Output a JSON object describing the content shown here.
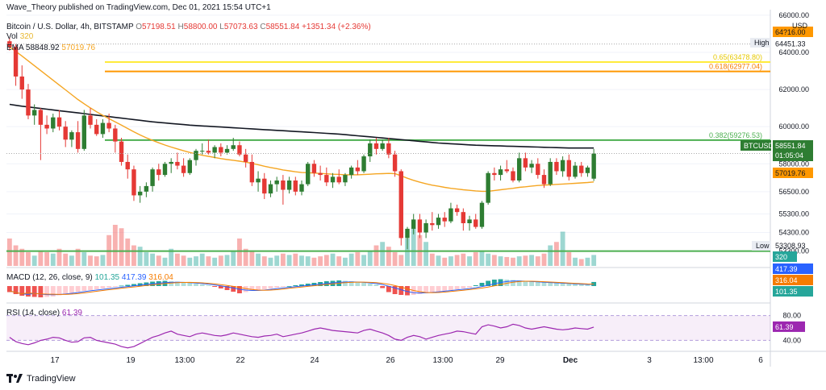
{
  "publisher": "Wave_Theory published on TradingView.com, Dec 01, 2021 15:54 UTC+1",
  "symbol": "Bitcoin / U.S. Dollar, 4h, BITSTAMP",
  "ohlc": {
    "o_label": "O",
    "o": "57198.51",
    "h_label": "H",
    "h": "58800.00",
    "l_label": "L",
    "l": "57073.63",
    "c_label": "C",
    "c": "58551.84",
    "change": "+1351.34 (+2.36%)"
  },
  "ema": {
    "label": "EMA",
    "value1": "58848.92",
    "value2": "57019.76"
  },
  "vol": {
    "label": "Vol",
    "value": "320"
  },
  "macd": {
    "label": "MACD (12, 26, close, 9)",
    "v1": "101.35",
    "v2": "417.39",
    "v3": "316.04"
  },
  "rsi": {
    "label": "RSI (14, close)",
    "value": "61.39"
  },
  "currency": "USD",
  "brand": "TradingView",
  "colors": {
    "up": "#26a69a",
    "down": "#ef5350",
    "green_up": "#2e7d32",
    "red_down": "#e53935",
    "ema_black": "#131722",
    "ema_orange": "#f5a623",
    "fib_green": "#4caf50",
    "fib_orange": "#ff9800",
    "fib_yellow": "#ffeb3b",
    "rsi": "#9c27b0"
  },
  "chart_data": [
    {
      "type": "candlestick",
      "title": "Bitcoin / U.S. Dollar, 4h, BITSTAMP",
      "x_ticks": [
        "17",
        "19",
        "13:00",
        "22",
        "24",
        "26",
        "13:00",
        "29",
        "Dec",
        "3",
        "13:00",
        "6"
      ],
      "y_ticks": [
        "66000.00",
        "64000.00",
        "62000.00",
        "60000.00",
        "58000.00",
        "56500.00",
        "55300.00",
        "54300.00",
        "53300.00"
      ],
      "ylim": [
        52500,
        66300
      ],
      "fib_levels": [
        {
          "label": "0.65(63478.80)",
          "value": 63478.8,
          "color": "yellow"
        },
        {
          "label": "0.618(62977.04)",
          "value": 62977.04,
          "color": "orange"
        },
        {
          "label": "0.382(59276.53)",
          "value": 59276.53,
          "color": "green"
        }
      ],
      "support_level": 53300,
      "price_labels": [
        {
          "name": "High",
          "text": "64451.33",
          "value": 64451.33
        },
        {
          "name": "EMA 320",
          "text": "58848.92",
          "value": 58848.92
        },
        {
          "name": "BTCUSD",
          "text": "58551.84",
          "value": 58551.84,
          "extra": "01:05:04"
        },
        {
          "name": "EMA 50",
          "text": "57019.76",
          "value": 57019.76
        },
        {
          "name": "Low",
          "text": "53308.93",
          "value": 53308.93
        },
        {
          "name": "Vol",
          "text": "320"
        }
      ],
      "top_partial_label": "64?16.00",
      "candles": [
        [
          64600,
          64800,
          64100,
          64300
        ],
        [
          64300,
          64450,
          62200,
          62700
        ],
        [
          62700,
          63300,
          61500,
          62000
        ],
        [
          62000,
          62300,
          60400,
          60600
        ],
        [
          60600,
          61200,
          60100,
          60900
        ],
        [
          60900,
          61000,
          58200,
          60100
        ],
        [
          60100,
          60600,
          59600,
          59900
        ],
        [
          59900,
          60700,
          59700,
          60500
        ],
        [
          60500,
          60900,
          59800,
          60000
        ],
        [
          60000,
          60300,
          58900,
          59300
        ],
        [
          59300,
          59800,
          58900,
          59700
        ],
        [
          59700,
          60300,
          58600,
          58800
        ],
        [
          58800,
          60900,
          58700,
          60600
        ],
        [
          60600,
          61000,
          59900,
          60100
        ],
        [
          60100,
          60400,
          59500,
          59600
        ],
        [
          59600,
          60400,
          59400,
          60200
        ],
        [
          60200,
          60700,
          59700,
          59900
        ],
        [
          59900,
          60100,
          58600,
          59200
        ],
        [
          59200,
          59400,
          57900,
          58100
        ],
        [
          58100,
          58500,
          57200,
          57700
        ],
        [
          57700,
          57900,
          56000,
          56300
        ],
        [
          56300,
          56800,
          55900,
          56500
        ],
        [
          56500,
          57000,
          56200,
          56800
        ],
        [
          56800,
          57800,
          56500,
          57700
        ],
        [
          57700,
          58000,
          57100,
          57400
        ],
        [
          57400,
          58100,
          57300,
          58000
        ],
        [
          58000,
          58300,
          57500,
          58100
        ],
        [
          58100,
          58600,
          57700,
          57900
        ],
        [
          57900,
          58300,
          57300,
          57500
        ],
        [
          57500,
          58300,
          57400,
          58200
        ],
        [
          58200,
          58800,
          57900,
          58700
        ],
        [
          58700,
          59100,
          58500,
          58700
        ],
        [
          58700,
          59300,
          58500,
          58600
        ],
        [
          58600,
          59000,
          58300,
          58900
        ],
        [
          58900,
          59100,
          58400,
          58600
        ],
        [
          58600,
          59000,
          58500,
          58800
        ],
        [
          58800,
          59400,
          58700,
          59000
        ],
        [
          59000,
          59200,
          58400,
          58500
        ],
        [
          58500,
          58800,
          57800,
          58100
        ],
        [
          58100,
          58500,
          56800,
          57000
        ],
        [
          57000,
          57600,
          56500,
          57200
        ],
        [
          57200,
          57500,
          56100,
          56400
        ],
        [
          56400,
          57100,
          56200,
          56900
        ],
        [
          56900,
          57300,
          56500,
          57100
        ],
        [
          57100,
          57400,
          55800,
          56600
        ],
        [
          56600,
          57300,
          56400,
          57100
        ],
        [
          57100,
          57300,
          56300,
          56500
        ],
        [
          56500,
          57100,
          56300,
          56900
        ],
        [
          56900,
          58100,
          56800,
          58000
        ],
        [
          58000,
          58200,
          57300,
          57500
        ],
        [
          57500,
          57900,
          57100,
          57400
        ],
        [
          57400,
          57800,
          56800,
          57000
        ],
        [
          57000,
          57500,
          56700,
          57300
        ],
        [
          57300,
          57700,
          56900,
          57000
        ],
        [
          57000,
          57500,
          56800,
          57400
        ],
        [
          57400,
          57900,
          57200,
          57800
        ],
        [
          57800,
          58200,
          57400,
          57600
        ],
        [
          57600,
          58500,
          57500,
          58400
        ],
        [
          58400,
          59300,
          58100,
          59100
        ],
        [
          59100,
          59400,
          58500,
          58800
        ],
        [
          58800,
          59300,
          58700,
          59100
        ],
        [
          59100,
          59400,
          58300,
          58500
        ],
        [
          58500,
          58700,
          57300,
          57600
        ],
        [
          57600,
          57700,
          53600,
          54000
        ],
        [
          54000,
          54600,
          53400,
          54500
        ],
        [
          54500,
          55300,
          54200,
          55000
        ],
        [
          55000,
          55300,
          54000,
          54300
        ],
        [
          54300,
          55000,
          54000,
          54800
        ],
        [
          54800,
          55400,
          54400,
          54700
        ],
        [
          54700,
          55300,
          54500,
          55100
        ],
        [
          55100,
          55400,
          54600,
          54900
        ],
        [
          54900,
          55900,
          54800,
          55600
        ],
        [
          55600,
          55800,
          55200,
          55400
        ],
        [
          55400,
          55600,
          54400,
          54800
        ],
        [
          54800,
          55200,
          54400,
          55000
        ],
        [
          55000,
          55300,
          54500,
          54600
        ],
        [
          54600,
          56000,
          54500,
          55900
        ],
        [
          55900,
          57600,
          55800,
          57500
        ],
        [
          57500,
          57800,
          57100,
          57400
        ],
        [
          57400,
          57900,
          57100,
          57700
        ],
        [
          57700,
          58200,
          57500,
          57600
        ],
        [
          57600,
          57800,
          57000,
          57100
        ],
        [
          57100,
          58600,
          57000,
          58300
        ],
        [
          58300,
          58600,
          57600,
          57800
        ],
        [
          57800,
          58200,
          57500,
          58000
        ],
        [
          58000,
          58300,
          57200,
          57400
        ],
        [
          57400,
          57700,
          56700,
          56900
        ],
        [
          56900,
          58300,
          56800,
          58100
        ],
        [
          58100,
          58300,
          57400,
          57600
        ],
        [
          57600,
          58400,
          57300,
          58200
        ],
        [
          58200,
          58500,
          57100,
          57300
        ],
        [
          57300,
          58100,
          57200,
          57900
        ],
        [
          57900,
          58100,
          57300,
          57500
        ],
        [
          57500,
          57900,
          57300,
          57800
        ],
        [
          57198.51,
          58800,
          57073.63,
          58551.84
        ]
      ],
      "ema_320": [
        61200,
        61150,
        61100,
        61060,
        61020,
        60980,
        60940,
        60900,
        60860,
        60820,
        60780,
        60740,
        60700,
        60660,
        60620,
        60580,
        60540,
        60500,
        60460,
        60420,
        60380,
        60340,
        60300,
        60260,
        60230,
        60200,
        60170,
        60140,
        60110,
        60080,
        60060,
        60040,
        60020,
        60000,
        59980,
        59960,
        59940,
        59920,
        59900,
        59880,
        59860,
        59840,
        59820,
        59800,
        59780,
        59760,
        59740,
        59720,
        59700,
        59680,
        59660,
        59640,
        59620,
        59600,
        59570,
        59540,
        59510,
        59480,
        59450,
        59420,
        59390,
        59360,
        59330,
        59300,
        59270,
        59240,
        59210,
        59180,
        59150,
        59120,
        59100,
        59080,
        59060,
        59040,
        59020,
        59000,
        58990,
        58980,
        58970,
        58960,
        58950,
        58940,
        58930,
        58920,
        58910,
        58900,
        58890,
        58880,
        58870,
        58860,
        58850,
        58849,
        58848.92,
        58848.92,
        58848.92
      ],
      "ema_50": [
        64300,
        64050,
        63800,
        63540,
        63280,
        63020,
        62760,
        62500,
        62240,
        61980,
        61720,
        61460,
        61230,
        61010,
        60800,
        60610,
        60430,
        60260,
        60080,
        59900,
        59720,
        59550,
        59400,
        59260,
        59130,
        59010,
        58900,
        58800,
        58700,
        58610,
        58530,
        58460,
        58400,
        58340,
        58280,
        58230,
        58190,
        58140,
        58090,
        58020,
        57950,
        57870,
        57800,
        57740,
        57670,
        57620,
        57570,
        57530,
        57520,
        57500,
        57480,
        57460,
        57440,
        57430,
        57410,
        57410,
        57410,
        57420,
        57440,
        57460,
        57470,
        57480,
        57470,
        57350,
        57220,
        57110,
        57010,
        56920,
        56850,
        56790,
        56730,
        56680,
        56640,
        56600,
        56570,
        56540,
        56520,
        56520,
        56560,
        56600,
        56640,
        56680,
        56730,
        56760,
        56800,
        56830,
        56850,
        56870,
        56890,
        56910,
        56930,
        56950,
        56970,
        56990,
        57019.76
      ],
      "volume": [
        40,
        30,
        25,
        20,
        15,
        22,
        20,
        18,
        25,
        18,
        15,
        25,
        20,
        15,
        14,
        16,
        45,
        60,
        55,
        40,
        30,
        28,
        20,
        18,
        15,
        12,
        25,
        18,
        15,
        12,
        14,
        18,
        14,
        12,
        15,
        16,
        22,
        40,
        25,
        22,
        18,
        14,
        12,
        15,
        18,
        16,
        18,
        15,
        14,
        12,
        14,
        16,
        18,
        14,
        12,
        18,
        20,
        16,
        22,
        30,
        35,
        28,
        20,
        16,
        40,
        55,
        45,
        35,
        18,
        15,
        12,
        14,
        16,
        18,
        14,
        20,
        22,
        18,
        16,
        14,
        13,
        12,
        14,
        15,
        16,
        14,
        18,
        30,
        35,
        50,
        20,
        12,
        10,
        12,
        16
      ]
    },
    {
      "type": "bar",
      "title": "MACD (12, 26, close, 9)",
      "values": [
        -150,
        -200,
        -240,
        -260,
        -270,
        -280,
        -270,
        -260,
        -230,
        -200,
        -170,
        -150,
        -120,
        -100,
        -80,
        -60,
        -40,
        -20,
        10,
        30,
        50,
        70,
        90,
        110,
        120,
        130,
        120,
        110,
        100,
        80,
        60,
        40,
        20,
        -20,
        -60,
        -100,
        -140,
        -180,
        -150,
        -120,
        -100,
        -80,
        -60,
        -40,
        -20,
        0,
        20,
        40,
        60,
        80,
        100,
        120,
        130,
        140,
        130,
        120,
        100,
        80,
        60,
        40,
        -50,
        -150,
        -200,
        -220,
        -230,
        -220,
        -200,
        -180,
        -160,
        -140,
        -120,
        -100,
        -80,
        -60,
        -40,
        20,
        80,
        130,
        160,
        170,
        160,
        150,
        140,
        130,
        120,
        110,
        100,
        90,
        80,
        70,
        60,
        50,
        40,
        30,
        101.35
      ]
    },
    {
      "type": "line",
      "title": "RSI (14, close)",
      "y_ticks": [
        "80.00",
        "40.00"
      ],
      "ylim": [
        25,
        95
      ],
      "values": [
        45,
        38,
        35,
        33,
        36,
        40,
        42,
        45,
        44,
        40,
        37,
        38,
        44,
        45,
        40,
        38,
        36,
        34,
        30,
        28,
        30,
        35,
        40,
        45,
        48,
        52,
        55,
        50,
        48,
        46,
        50,
        52,
        50,
        48,
        47,
        49,
        52,
        50,
        48,
        46,
        45,
        47,
        48,
        50,
        46,
        48,
        50,
        52,
        55,
        58,
        60,
        58,
        56,
        55,
        54,
        53,
        52,
        56,
        58,
        55,
        52,
        48,
        42,
        40,
        45,
        48,
        46,
        42,
        45,
        48,
        50,
        52,
        55,
        54,
        52,
        50,
        62,
        65,
        63,
        60,
        62,
        66,
        64,
        60,
        58,
        60,
        62,
        60,
        58,
        57,
        58,
        60,
        59,
        58,
        61.39
      ]
    }
  ],
  "x_axis": {
    "labels": [
      "17",
      "19",
      "13:00",
      "22",
      "24",
      "26",
      "13:00",
      "29",
      "Dec",
      "3",
      "13:00",
      "6"
    ]
  }
}
